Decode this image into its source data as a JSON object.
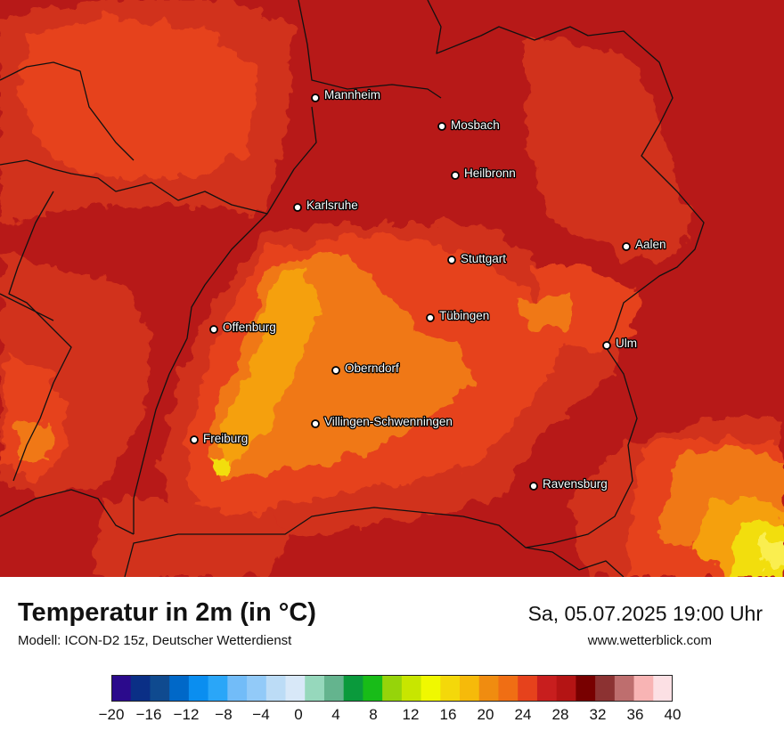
{
  "map": {
    "cities": [
      {
        "name": "Mannheim"
      },
      {
        "name": "Mosbach"
      },
      {
        "name": "Heilbronn"
      },
      {
        "name": "Karlsruhe"
      },
      {
        "name": "Aalen"
      },
      {
        "name": "Stuttgart"
      },
      {
        "name": "Tübingen"
      },
      {
        "name": "Offenburg"
      },
      {
        "name": "Ulm"
      },
      {
        "name": "Oberndorf"
      },
      {
        "name": "Villingen-Schwenningen"
      },
      {
        "name": "Freiburg"
      },
      {
        "name": "Ravensburg"
      }
    ],
    "field_colors": {
      "deep_red": "#b71918",
      "red": "#d1301b",
      "red_orange": "#e6421c",
      "orange": "#f07816",
      "light_orange": "#f5a00f",
      "yellow": "#f2de08",
      "pale_yellow": "#faee50",
      "border": "#111111"
    }
  },
  "footer": {
    "title": "Temperatur in 2m (in °C)",
    "model": "Modell: ICON-D2 15z, Deutscher Wetterdienst",
    "datetime": "Sa, 05.07.2025 19:00 Uhr",
    "website": "www.wetterblick.com"
  },
  "legend": {
    "min": -20,
    "max": 40,
    "ticks": [
      "−20",
      "−16",
      "−12",
      "−8",
      "−4",
      "0",
      "4",
      "8",
      "12",
      "16",
      "20",
      "24",
      "28",
      "32",
      "36",
      "40"
    ],
    "colors": [
      "#2b0a8c",
      "#0a2f86",
      "#0f4a8f",
      "#0068c8",
      "#0a8ef0",
      "#2aa6f8",
      "#72bcf8",
      "#92caf8",
      "#bcdcf6",
      "#d8e8f8",
      "#96d8bc",
      "#64b48e",
      "#0a9a3c",
      "#18bc18",
      "#96d40a",
      "#c8e600",
      "#f0f800",
      "#f4d80a",
      "#f6ba0a",
      "#f08c10",
      "#f06e14",
      "#e6421c",
      "#c81e1e",
      "#b41414",
      "#780000",
      "#8c3232",
      "#be6e6e",
      "#f8b4b4",
      "#fce0e4"
    ]
  }
}
